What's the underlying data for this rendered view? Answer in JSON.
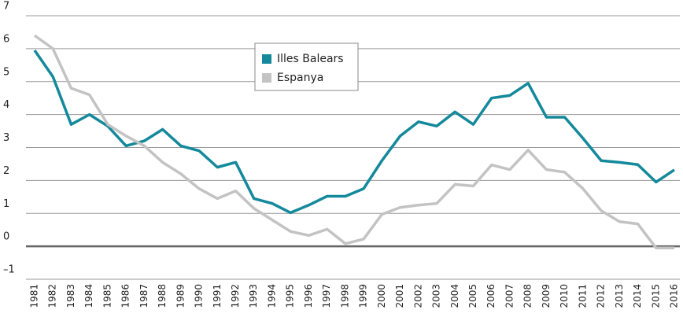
{
  "chart_data": {
    "type": "line",
    "categories": [
      "1981",
      "1982",
      "1983",
      "1984",
      "1985",
      "1986",
      "1987",
      "1988",
      "1989",
      "1990",
      "1991",
      "1992",
      "1993",
      "1994",
      "1995",
      "1996",
      "1997",
      "1998",
      "1999",
      "2000",
      "2001",
      "2002",
      "2003",
      "2004",
      "2005",
      "2006",
      "2007",
      "2008",
      "2009",
      "2010",
      "2011",
      "2012",
      "2013",
      "2014",
      "2015",
      "2016"
    ],
    "series": [
      {
        "name": "Illes Balears",
        "color": "#13899b",
        "values": [
          5.95,
          5.15,
          3.7,
          4.0,
          3.65,
          3.05,
          3.2,
          3.55,
          3.05,
          2.9,
          2.4,
          2.55,
          1.45,
          1.3,
          1.02,
          1.25,
          1.52,
          1.52,
          1.75,
          2.6,
          3.35,
          3.78,
          3.65,
          4.08,
          3.7,
          4.5,
          4.58,
          4.95,
          3.92,
          3.92,
          3.28,
          2.6,
          2.55,
          2.48,
          1.95,
          2.32
        ]
      },
      {
        "name": "Espanya",
        "color": "#c3c3c3",
        "values": [
          6.4,
          6.0,
          4.8,
          4.6,
          3.7,
          3.35,
          3.05,
          2.55,
          2.2,
          1.75,
          1.45,
          1.68,
          1.15,
          0.8,
          0.45,
          0.33,
          0.52,
          0.08,
          0.22,
          0.97,
          1.18,
          1.25,
          1.3,
          1.88,
          1.83,
          2.47,
          2.33,
          2.92,
          2.33,
          2.25,
          1.75,
          1.08,
          0.75,
          0.68,
          -0.05,
          -0.05
        ]
      }
    ],
    "ylim": [
      -1,
      7
    ],
    "yticks": [
      {
        "value": -1,
        "label": "–1"
      },
      0,
      1,
      2,
      3,
      4,
      5,
      6,
      7
    ],
    "grid": true
  }
}
